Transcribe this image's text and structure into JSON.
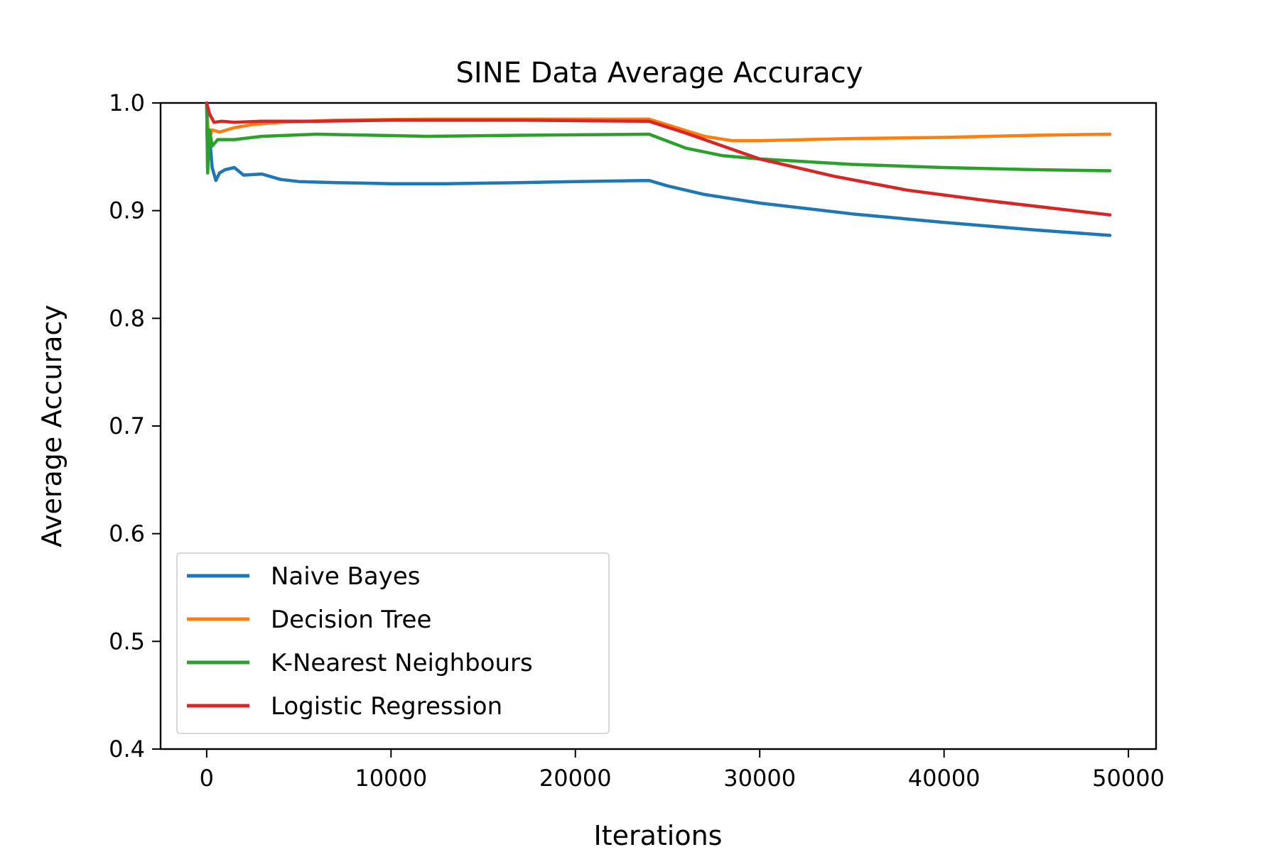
{
  "chart_data": {
    "type": "line",
    "title": "SINE Data Average Accuracy",
    "xlabel": "Iterations",
    "ylabel": "Average Accuracy",
    "xlim": [
      -2500,
      51500
    ],
    "ylim": [
      0.4,
      1.0
    ],
    "xticks": [
      0,
      10000,
      20000,
      30000,
      40000,
      50000
    ],
    "xtick_labels": [
      "0",
      "10000",
      "20000",
      "30000",
      "40000",
      "50000"
    ],
    "yticks": [
      0.4,
      0.5,
      0.6,
      0.7,
      0.8,
      0.9,
      1.0
    ],
    "ytick_labels": [
      "0.4",
      "0.5",
      "0.6",
      "0.7",
      "0.8",
      "0.9",
      "1.0"
    ],
    "grid": false,
    "legend_position": "lower-left",
    "series": [
      {
        "name": "Naive Bayes",
        "color": "#1f77b4",
        "points": [
          [
            0,
            1.0
          ],
          [
            50,
            0.94
          ],
          [
            150,
            0.97
          ],
          [
            300,
            0.94
          ],
          [
            500,
            0.928
          ],
          [
            700,
            0.935
          ],
          [
            1000,
            0.938
          ],
          [
            1500,
            0.94
          ],
          [
            2000,
            0.933
          ],
          [
            3000,
            0.934
          ],
          [
            4000,
            0.929
          ],
          [
            5000,
            0.927
          ],
          [
            7000,
            0.926
          ],
          [
            10000,
            0.925
          ],
          [
            13000,
            0.925
          ],
          [
            17000,
            0.926
          ],
          [
            20000,
            0.927
          ],
          [
            24000,
            0.928
          ],
          [
            25000,
            0.923
          ],
          [
            27000,
            0.915
          ],
          [
            30000,
            0.907
          ],
          [
            35000,
            0.897
          ],
          [
            40000,
            0.889
          ],
          [
            45000,
            0.882
          ],
          [
            49000,
            0.877
          ]
        ]
      },
      {
        "name": "Decision Tree",
        "color": "#ff7f0e",
        "points": [
          [
            0,
            1.0
          ],
          [
            100,
            0.965
          ],
          [
            300,
            0.975
          ],
          [
            700,
            0.973
          ],
          [
            1500,
            0.977
          ],
          [
            2500,
            0.98
          ],
          [
            4000,
            0.982
          ],
          [
            7000,
            0.984
          ],
          [
            12000,
            0.985
          ],
          [
            17000,
            0.985
          ],
          [
            24000,
            0.985
          ],
          [
            25500,
            0.977
          ],
          [
            27000,
            0.969
          ],
          [
            28500,
            0.965
          ],
          [
            30000,
            0.965
          ],
          [
            35000,
            0.967
          ],
          [
            40000,
            0.968
          ],
          [
            45000,
            0.97
          ],
          [
            49000,
            0.971
          ]
        ]
      },
      {
        "name": "K-Nearest Neighbours",
        "color": "#2ca02c",
        "points": [
          [
            0,
            1.0
          ],
          [
            50,
            0.935
          ],
          [
            150,
            0.975
          ],
          [
            300,
            0.96
          ],
          [
            600,
            0.966
          ],
          [
            1500,
            0.966
          ],
          [
            3000,
            0.969
          ],
          [
            6000,
            0.971
          ],
          [
            12000,
            0.969
          ],
          [
            17000,
            0.97
          ],
          [
            24000,
            0.971
          ],
          [
            26000,
            0.958
          ],
          [
            28000,
            0.951
          ],
          [
            30000,
            0.948
          ],
          [
            35000,
            0.943
          ],
          [
            40000,
            0.94
          ],
          [
            45000,
            0.938
          ],
          [
            49000,
            0.937
          ]
        ]
      },
      {
        "name": "Logistic Regression",
        "color": "#d62728",
        "points": [
          [
            0,
            1.0
          ],
          [
            150,
            0.99
          ],
          [
            400,
            0.982
          ],
          [
            800,
            0.983
          ],
          [
            1500,
            0.982
          ],
          [
            3000,
            0.983
          ],
          [
            6000,
            0.983
          ],
          [
            10000,
            0.984
          ],
          [
            17000,
            0.984
          ],
          [
            24000,
            0.983
          ],
          [
            26000,
            0.972
          ],
          [
            28000,
            0.96
          ],
          [
            30000,
            0.948
          ],
          [
            34000,
            0.932
          ],
          [
            38000,
            0.919
          ],
          [
            42000,
            0.91
          ],
          [
            46000,
            0.902
          ],
          [
            49000,
            0.896
          ]
        ]
      }
    ]
  }
}
